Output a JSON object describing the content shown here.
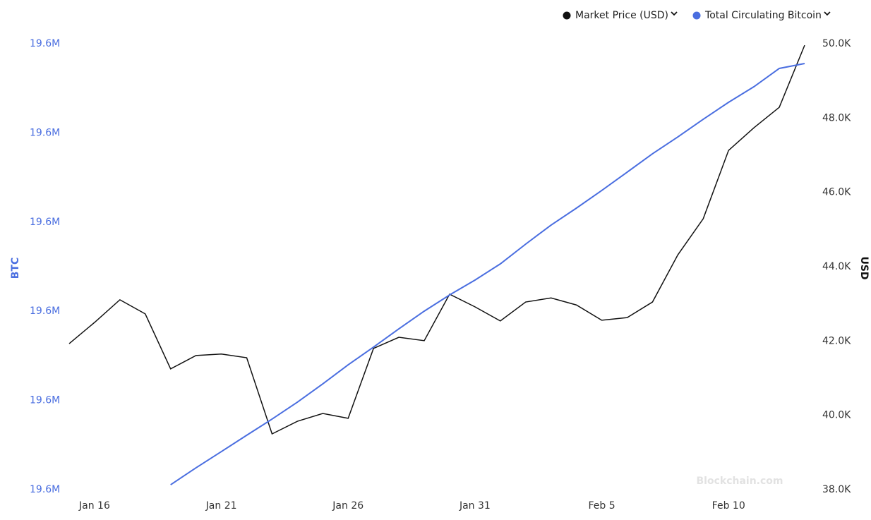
{
  "chart_data": {
    "type": "line",
    "categories": [
      null,
      "Jan 16",
      null,
      null,
      null,
      null,
      "Jan 21",
      null,
      null,
      null,
      null,
      "Jan 26",
      null,
      null,
      null,
      null,
      "Jan 31",
      null,
      null,
      null,
      null,
      "Feb 5",
      null,
      null,
      null,
      null,
      "Feb 10",
      null,
      null,
      null
    ],
    "series": [
      {
        "name": "Market Price (USD)",
        "color": "#111111",
        "axis": "y2",
        "values": [
          41930,
          42500,
          43110,
          42730,
          41250,
          41610,
          41650,
          41550,
          39500,
          39840,
          40050,
          39920,
          41800,
          42100,
          42010,
          43260,
          42920,
          42540,
          43050,
          43160,
          42970,
          42560,
          42630,
          43050,
          44320,
          45290,
          47130,
          47740,
          48290,
          49960
        ]
      },
      {
        "name": "Total Circulating Bitcoin",
        "color": "#4a6ee0",
        "values": [
          null,
          null,
          null,
          null,
          19596330,
          19597470,
          19598560,
          19599660,
          19600750,
          19601890,
          19603120,
          19604400,
          19605590,
          19606820,
          19608010,
          19609100,
          19610100,
          19611190,
          19612520,
          19613800,
          19614940,
          19616130,
          19617360,
          19618600,
          19619730,
          19620920,
          19622060,
          19623110,
          19624340,
          19624670
        ]
      }
    ],
    "ylabel": "BTC",
    "y2label": "USD",
    "ylim": [
      19596000,
      19626000
    ],
    "yticks": [
      {
        "value": 19596000,
        "label": "19.6M"
      },
      {
        "value": 19602000,
        "label": "19.6M"
      },
      {
        "value": 19608000,
        "label": "19.6M"
      },
      {
        "value": 19614000,
        "label": "19.6M"
      },
      {
        "value": 19620000,
        "label": "19.6M"
      },
      {
        "value": 19626000,
        "label": "19.6M"
      }
    ],
    "y2lim": [
      38000,
      50000
    ],
    "y2ticks": [
      {
        "value": 38000,
        "label": "38.0K"
      },
      {
        "value": 40000,
        "label": "40.0K"
      },
      {
        "value": 42000,
        "label": "42.0K"
      },
      {
        "value": 44000,
        "label": "44.0K"
      },
      {
        "value": 46000,
        "label": "46.0K"
      },
      {
        "value": 48000,
        "label": "48.0K"
      },
      {
        "value": 50000,
        "label": "50.0K"
      }
    ],
    "legend": "top-right",
    "grid": false,
    "watermark": "Blockchain.com"
  }
}
